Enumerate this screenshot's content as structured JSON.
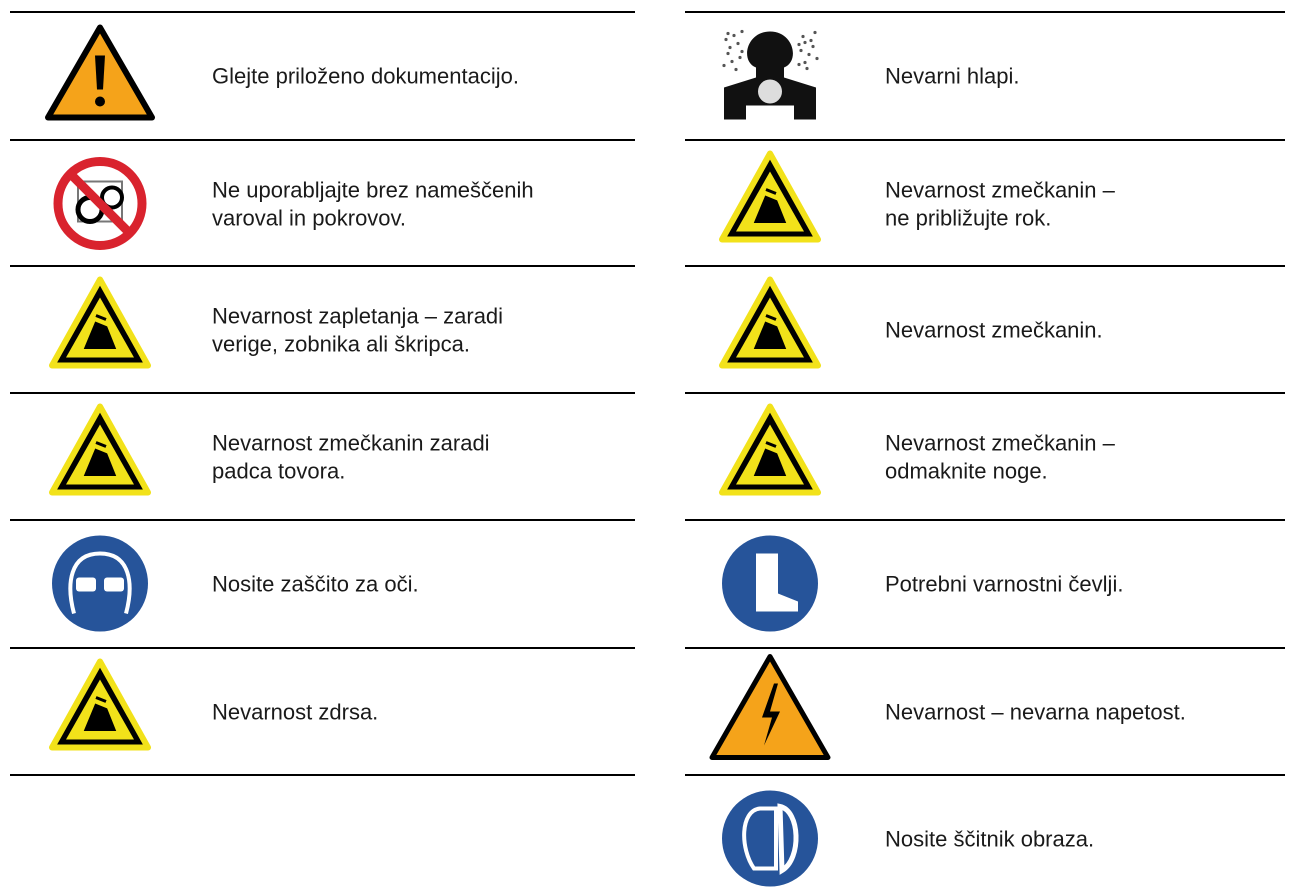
{
  "left": {
    "items": [
      {
        "lines": [
          "Glejte priloženo dokumentacijo."
        ]
      },
      {
        "lines": [
          "Ne uporabljajte brez nameščenih",
          "varoval in pokrovov."
        ]
      },
      {
        "lines": [
          "Nevarnost zapletanja – zaradi",
          "verige, zobnika ali škripca."
        ]
      },
      {
        "lines": [
          "Nevarnost zmečkanin zaradi",
          "padca tovora."
        ]
      },
      {
        "lines": [
          "Nosite zaščito za oči."
        ]
      },
      {
        "lines": [
          "Nevarnost zdrsa."
        ]
      }
    ]
  },
  "right": {
    "items": [
      {
        "lines": [
          "Nevarni hlapi."
        ]
      },
      {
        "lines": [
          "Nevarnost zmečkanin –",
          "ne približujte rok."
        ]
      },
      {
        "lines": [
          "Nevarnost zmečkanin."
        ]
      },
      {
        "lines": [
          "Nevarnost zmečkanin –",
          "odmaknite noge."
        ]
      },
      {
        "lines": [
          "Potrebni varnostni čevlji."
        ]
      },
      {
        "lines": [
          "Nevarnost – nevarna napetost."
        ]
      },
      {
        "lines": [
          "Nosite ščitnik obraza."
        ]
      }
    ]
  }
}
